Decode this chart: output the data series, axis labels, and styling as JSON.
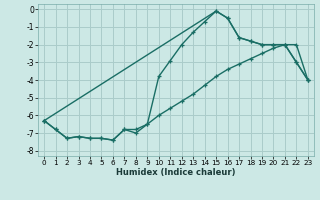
{
  "xlabel": "Humidex (Indice chaleur)",
  "bg_color": "#cce8e5",
  "grid_color": "#aaccca",
  "line_color": "#1a6e65",
  "xlim": [
    -0.5,
    23.5
  ],
  "ylim": [
    -8.3,
    0.3
  ],
  "xticks": [
    0,
    1,
    2,
    3,
    4,
    5,
    6,
    7,
    8,
    9,
    10,
    11,
    12,
    13,
    14,
    15,
    16,
    17,
    18,
    19,
    20,
    21,
    22,
    23
  ],
  "yticks": [
    0,
    -1,
    -2,
    -3,
    -4,
    -5,
    -6,
    -7,
    -8
  ],
  "curve_upper_x": [
    0,
    1,
    2,
    3,
    4,
    5,
    6,
    7,
    8,
    9,
    10,
    11,
    12,
    13,
    14,
    15,
    16,
    17,
    18,
    19,
    20,
    21,
    22,
    23
  ],
  "curve_upper_y": [
    -6.3,
    -6.8,
    -7.3,
    -7.2,
    -7.3,
    -7.3,
    -7.4,
    -6.8,
    -7.0,
    -6.5,
    -3.8,
    -2.9,
    -2.0,
    -1.3,
    -0.7,
    -0.1,
    -0.5,
    -1.6,
    -1.8,
    -2.0,
    -2.0,
    -2.0,
    -3.0,
    -4.0
  ],
  "curve_lower_x": [
    0,
    1,
    2,
    3,
    4,
    5,
    6,
    7,
    8,
    9,
    10,
    11,
    12,
    13,
    14,
    15,
    16,
    17,
    18,
    19,
    20,
    21,
    22,
    23
  ],
  "curve_lower_y": [
    -6.3,
    -6.8,
    -7.3,
    -7.2,
    -7.3,
    -7.3,
    -7.4,
    -6.8,
    -6.8,
    -6.5,
    -6.0,
    -5.6,
    -5.2,
    -4.8,
    -4.3,
    -3.8,
    -3.4,
    -3.1,
    -2.8,
    -2.5,
    -2.2,
    -2.0,
    -2.0,
    -4.0
  ],
  "curve_diag_x": [
    0,
    15,
    16,
    17,
    18,
    19,
    20,
    21,
    22,
    23
  ],
  "curve_diag_y": [
    -6.3,
    -0.1,
    -0.5,
    -1.6,
    -1.8,
    -2.0,
    -2.0,
    -2.0,
    -3.0,
    -4.0
  ]
}
